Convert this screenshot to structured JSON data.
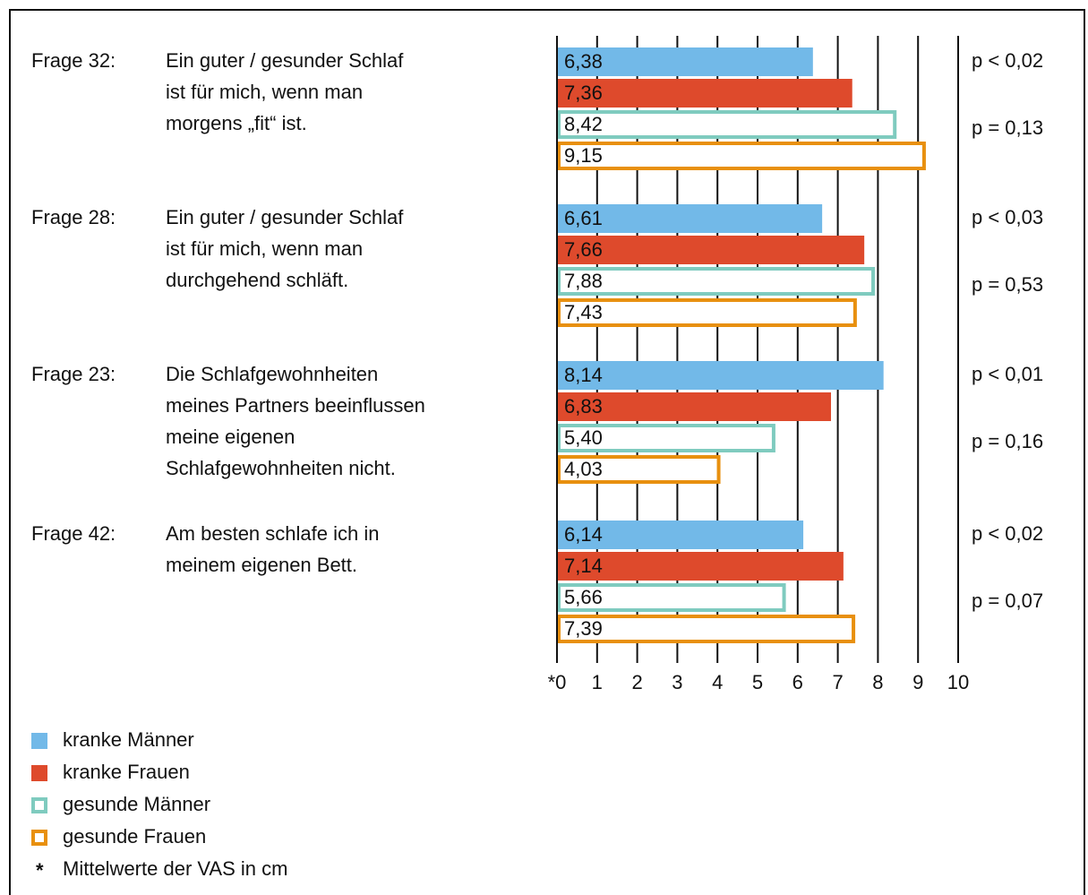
{
  "chart_data": {
    "type": "barh",
    "categories": [
      "Frage 32:",
      "Frage 28:",
      "Frage 23:",
      "Frage 42:"
    ],
    "questions": [
      [
        "Ein guter / gesunder Schlaf",
        "ist für mich, wenn man",
        "morgens „fit“ ist."
      ],
      [
        "Ein guter / gesunder Schlaf",
        "ist für mich, wenn man",
        "durchgehend schläft."
      ],
      [
        "Die Schlafgewohnheiten",
        "meines Partners beeinflussen",
        "meine eigenen",
        "Schlafgewohnheiten nicht."
      ],
      [
        "Am besten schlafe ich in",
        "meinem eigenen Bett."
      ]
    ],
    "p_values": [
      [
        "p < 0,02",
        "p = 0,13"
      ],
      [
        "p < 0,03",
        "p = 0,53"
      ],
      [
        "p < 0,01",
        "p = 0,16"
      ],
      [
        "p < 0,02",
        "p = 0,07"
      ]
    ],
    "series": [
      {
        "name": "kranke Männer",
        "color": "#72b9e8",
        "filled": true,
        "values": [
          6.38,
          6.61,
          8.14,
          6.14
        ],
        "value_labels": [
          "6,38",
          "6,61",
          "8,14",
          "6,14"
        ]
      },
      {
        "name": "kranke Frauen",
        "color": "#de4a2c",
        "filled": true,
        "values": [
          7.36,
          7.66,
          6.83,
          7.14
        ],
        "value_labels": [
          "7,36",
          "7,66",
          "6,83",
          "7,14"
        ]
      },
      {
        "name": "gesunde Männer",
        "color": "#7fcbbf",
        "filled": false,
        "values": [
          8.42,
          7.88,
          5.4,
          5.66
        ],
        "value_labels": [
          "8,42",
          "7,88",
          "5,40",
          "5,66"
        ]
      },
      {
        "name": "gesunde Frauen",
        "color": "#e8900f",
        "filled": false,
        "values": [
          9.15,
          7.43,
          4.03,
          7.39
        ],
        "value_labels": [
          "9,15",
          "7,43",
          "4,03",
          "7,39"
        ]
      }
    ],
    "xlim": [
      0,
      10
    ],
    "xticks": [
      {
        "value": 0,
        "label": "*0"
      },
      1,
      2,
      3,
      4,
      5,
      6,
      7,
      8,
      9,
      10
    ],
    "grid": true,
    "footnote": {
      "marker": "*",
      "text": "Mittelwerte der VAS in cm"
    }
  }
}
